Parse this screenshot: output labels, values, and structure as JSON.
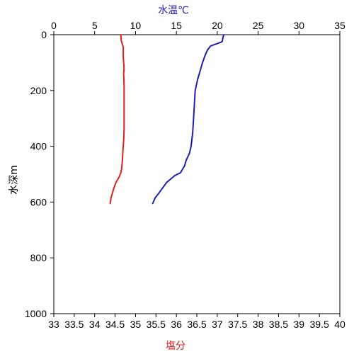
{
  "chart_data": {
    "type": "line",
    "x_top_label": "水温℃",
    "x_bottom_label": "塩分",
    "y_label": "水深m",
    "y_range": [
      0,
      1000
    ],
    "y_ticks": [
      0,
      200,
      400,
      600,
      800,
      1000
    ],
    "y_inverted": true,
    "x_top_range": [
      0,
      35
    ],
    "x_top_ticks": [
      0,
      5,
      10,
      15,
      20,
      25,
      30,
      35
    ],
    "x_bottom_range": [
      33,
      40
    ],
    "x_bottom_ticks": [
      "33",
      "33.5",
      "34",
      "34.5",
      "35",
      "35.5",
      "36",
      "36.5",
      "37",
      "37.5",
      "38",
      "38.5",
      "39",
      "39.5",
      "40"
    ],
    "grid": false,
    "series": [
      {
        "axis": "top",
        "color": "#1f1fb4",
        "points": [
          [
            20.8,
            0
          ],
          [
            20.7,
            10
          ],
          [
            20.6,
            25
          ],
          [
            20.0,
            32
          ],
          [
            19.2,
            40
          ],
          [
            18.8,
            55
          ],
          [
            18.5,
            75
          ],
          [
            18.2,
            100
          ],
          [
            17.9,
            130
          ],
          [
            17.6,
            160
          ],
          [
            17.3,
            200
          ],
          [
            17.2,
            250
          ],
          [
            17.1,
            300
          ],
          [
            17.0,
            350
          ],
          [
            16.8,
            400
          ],
          [
            16.6,
            425
          ],
          [
            16.2,
            450
          ],
          [
            16.0,
            470
          ],
          [
            15.5,
            495
          ],
          [
            14.8,
            505
          ],
          [
            14.2,
            520
          ],
          [
            13.8,
            530
          ],
          [
            13.3,
            550
          ],
          [
            12.8,
            570
          ],
          [
            12.4,
            585
          ],
          [
            12.1,
            605
          ]
        ]
      },
      {
        "axis": "bottom",
        "color": "#e01f1f",
        "points": [
          [
            34.64,
            0
          ],
          [
            34.65,
            20
          ],
          [
            34.7,
            45
          ],
          [
            34.7,
            80
          ],
          [
            34.72,
            120
          ],
          [
            34.71,
            140
          ],
          [
            34.72,
            180
          ],
          [
            34.72,
            240
          ],
          [
            34.72,
            300
          ],
          [
            34.72,
            340
          ],
          [
            34.71,
            380
          ],
          [
            34.7,
            400
          ],
          [
            34.69,
            420
          ],
          [
            34.68,
            450
          ],
          [
            34.66,
            480
          ],
          [
            34.64,
            495
          ],
          [
            34.6,
            510
          ],
          [
            34.52,
            530
          ],
          [
            34.47,
            550
          ],
          [
            34.43,
            570
          ],
          [
            34.4,
            585
          ],
          [
            34.38,
            605
          ]
        ]
      }
    ]
  },
  "colors": {
    "axis": "#000000",
    "top_title": "#1f1fb4",
    "bottom_title": "#e01f1f"
  }
}
